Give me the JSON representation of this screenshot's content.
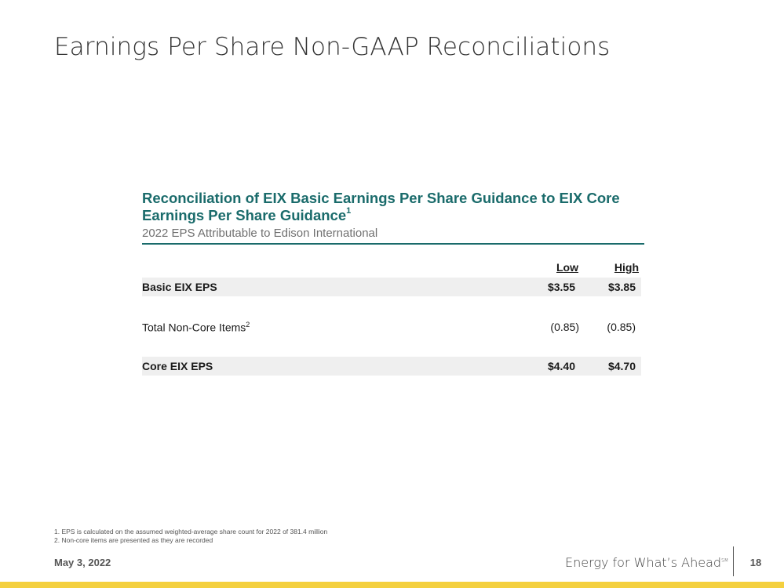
{
  "slide": {
    "title": "Earnings Per Share Non-GAAP Reconciliations",
    "page_number": "18",
    "date": "May 3, 2022",
    "tagline": "Energy for What’s Ahead",
    "tagline_mark": "SM"
  },
  "table": {
    "heading": "Reconciliation of EIX Basic Earnings Per Share Guidance to EIX Core Earnings Per Share Guidance",
    "heading_note": "1",
    "subheading": "2022 EPS Attributable to Edison International",
    "columns": [
      "Low",
      "High"
    ],
    "rows": [
      {
        "label": "Basic EIX EPS",
        "note": "",
        "low": "$3.55",
        "high": "$3.85"
      },
      {
        "label": "Total Non-Core Items",
        "note": "2",
        "low": "(0.85)",
        "high": "(0.85)"
      },
      {
        "label": "Core EIX EPS",
        "note": "",
        "low": "$4.40",
        "high": "$4.70"
      }
    ]
  },
  "footnotes": [
    "1.  EPS is calculated on the assumed weighted-average share count for 2022 of 381.4 million",
    "2.  Non-core items are presented as they are recorded"
  ],
  "colors": {
    "accent_teal": "#1a6b6b",
    "brand_yellow": "#f4d03f",
    "row_shade": "#efefef"
  }
}
